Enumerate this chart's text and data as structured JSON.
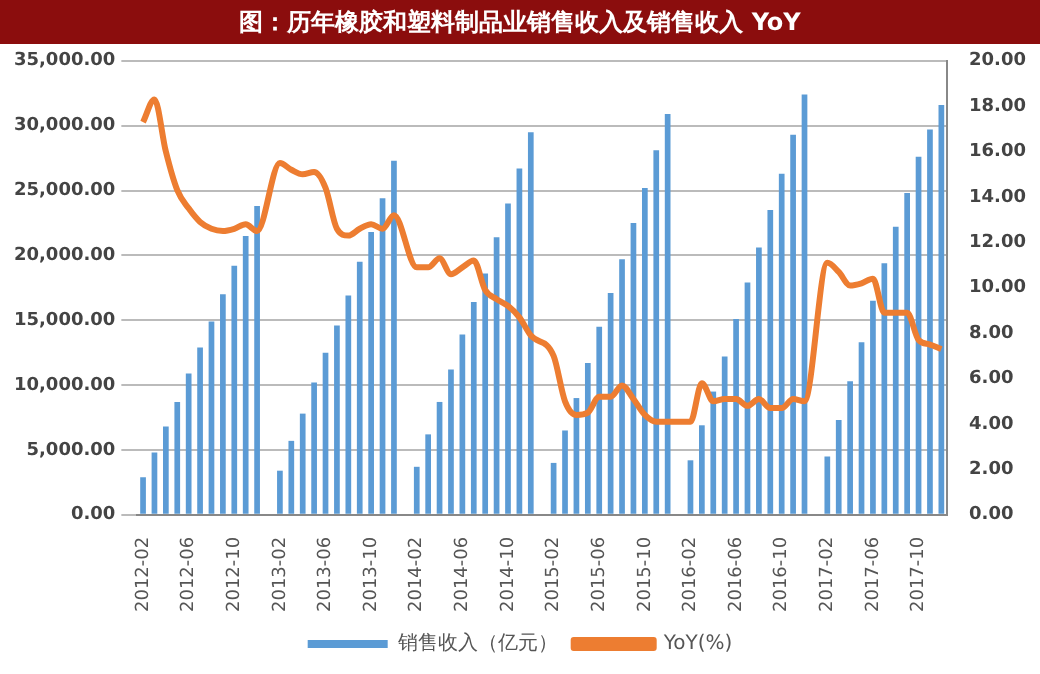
{
  "chart_data": {
    "type": "bar",
    "title": "图：历年橡胶和塑料制品业销售收入及销售收入 YoY",
    "categories": [
      "2012-02",
      null,
      null,
      null,
      "2012-06",
      null,
      null,
      null,
      "2012-10",
      null,
      null,
      null,
      "2013-02",
      null,
      null,
      null,
      "2013-06",
      null,
      null,
      null,
      "2013-10",
      null,
      null,
      null,
      "2014-02",
      null,
      null,
      null,
      "2014-06",
      null,
      null,
      null,
      "2014-10",
      null,
      null,
      null,
      "2015-02",
      null,
      null,
      null,
      "2015-06",
      null,
      null,
      null,
      "2015-10",
      null,
      null,
      null,
      "2016-02",
      null,
      null,
      null,
      "2016-06",
      null,
      null,
      null,
      "2016-10",
      null,
      null,
      null,
      "2017-02",
      null,
      null,
      null,
      "2017-06",
      null,
      null,
      null,
      "2017-10",
      null,
      null
    ],
    "series": [
      {
        "name": "销售收入（亿元）",
        "color": "#5b9bd5",
        "values": [
          2900,
          4800,
          6800,
          8700,
          10900,
          12900,
          14900,
          17000,
          19200,
          21500,
          23800,
          null,
          3400,
          5700,
          7800,
          10200,
          12500,
          14600,
          16900,
          19500,
          21800,
          24400,
          27300,
          null,
          3700,
          6200,
          8700,
          11200,
          13900,
          16400,
          18600,
          21400,
          24000,
          26700,
          29500,
          null,
          4000,
          6500,
          9000,
          11700,
          14500,
          17100,
          19700,
          22500,
          25200,
          28100,
          30900,
          null,
          4200,
          6900,
          9500,
          12200,
          15100,
          17900,
          20600,
          23500,
          26300,
          29300,
          32400,
          null,
          4500,
          7300,
          10300,
          13300,
          16500,
          19400,
          22200,
          24800,
          27600,
          29700,
          31600
        ]
      },
      {
        "name": "YoY(%)",
        "type": "line",
        "axis": "y2",
        "color": "#ed7d31",
        "values": [
          17.3,
          18.3,
          16.0,
          14.3,
          13.5,
          12.9,
          12.6,
          12.5,
          12.6,
          12.8,
          12.5,
          null,
          15.5,
          15.2,
          15.0,
          15.1,
          14.4,
          12.6,
          12.3,
          12.6,
          12.8,
          12.6,
          13.2,
          null,
          10.9,
          10.9,
          11.3,
          10.6,
          10.9,
          11.2,
          9.9,
          9.5,
          9.2,
          8.7,
          7.9,
          null,
          7.0,
          5.0,
          4.4,
          4.5,
          5.2,
          5.2,
          5.7,
          5.1,
          4.4,
          4.1,
          4.1,
          null,
          4.1,
          5.8,
          5.0,
          5.1,
          5.1,
          4.8,
          5.1,
          4.7,
          4.7,
          5.1,
          5.0,
          null,
          11.1,
          10.7,
          10.1,
          10.2,
          10.4,
          8.9,
          8.9,
          8.9,
          7.7,
          7.5,
          7.3
        ]
      }
    ],
    "ylim": [
      0,
      35000
    ],
    "yticks": [
      {
        "value": 0,
        "label": "0.00"
      },
      {
        "value": 5000,
        "label": "5,000.00"
      },
      {
        "value": 10000,
        "label": "10,000.00"
      },
      {
        "value": 15000,
        "label": "15,000.00"
      },
      {
        "value": 20000,
        "label": "20,000.00"
      },
      {
        "value": 25000,
        "label": "25,000.00"
      },
      {
        "value": 30000,
        "label": "30,000.00"
      },
      {
        "value": 35000,
        "label": "35,000.00"
      }
    ],
    "y2lim": [
      0,
      20
    ],
    "y2ticks": [
      {
        "value": 0,
        "label": "0.00"
      },
      {
        "value": 2,
        "label": "2.00"
      },
      {
        "value": 4,
        "label": "4.00"
      },
      {
        "value": 6,
        "label": "6.00"
      },
      {
        "value": 8,
        "label": "8.00"
      },
      {
        "value": 10,
        "label": "10.00"
      },
      {
        "value": 12,
        "label": "12.00"
      },
      {
        "value": 14,
        "label": "14.00"
      },
      {
        "value": 16,
        "label": "16.00"
      },
      {
        "value": 18,
        "label": "18.00"
      },
      {
        "value": 20,
        "label": "20.00"
      }
    ],
    "grid": "y",
    "legend": "bottom",
    "marker": "none",
    "line_style": "solid"
  }
}
